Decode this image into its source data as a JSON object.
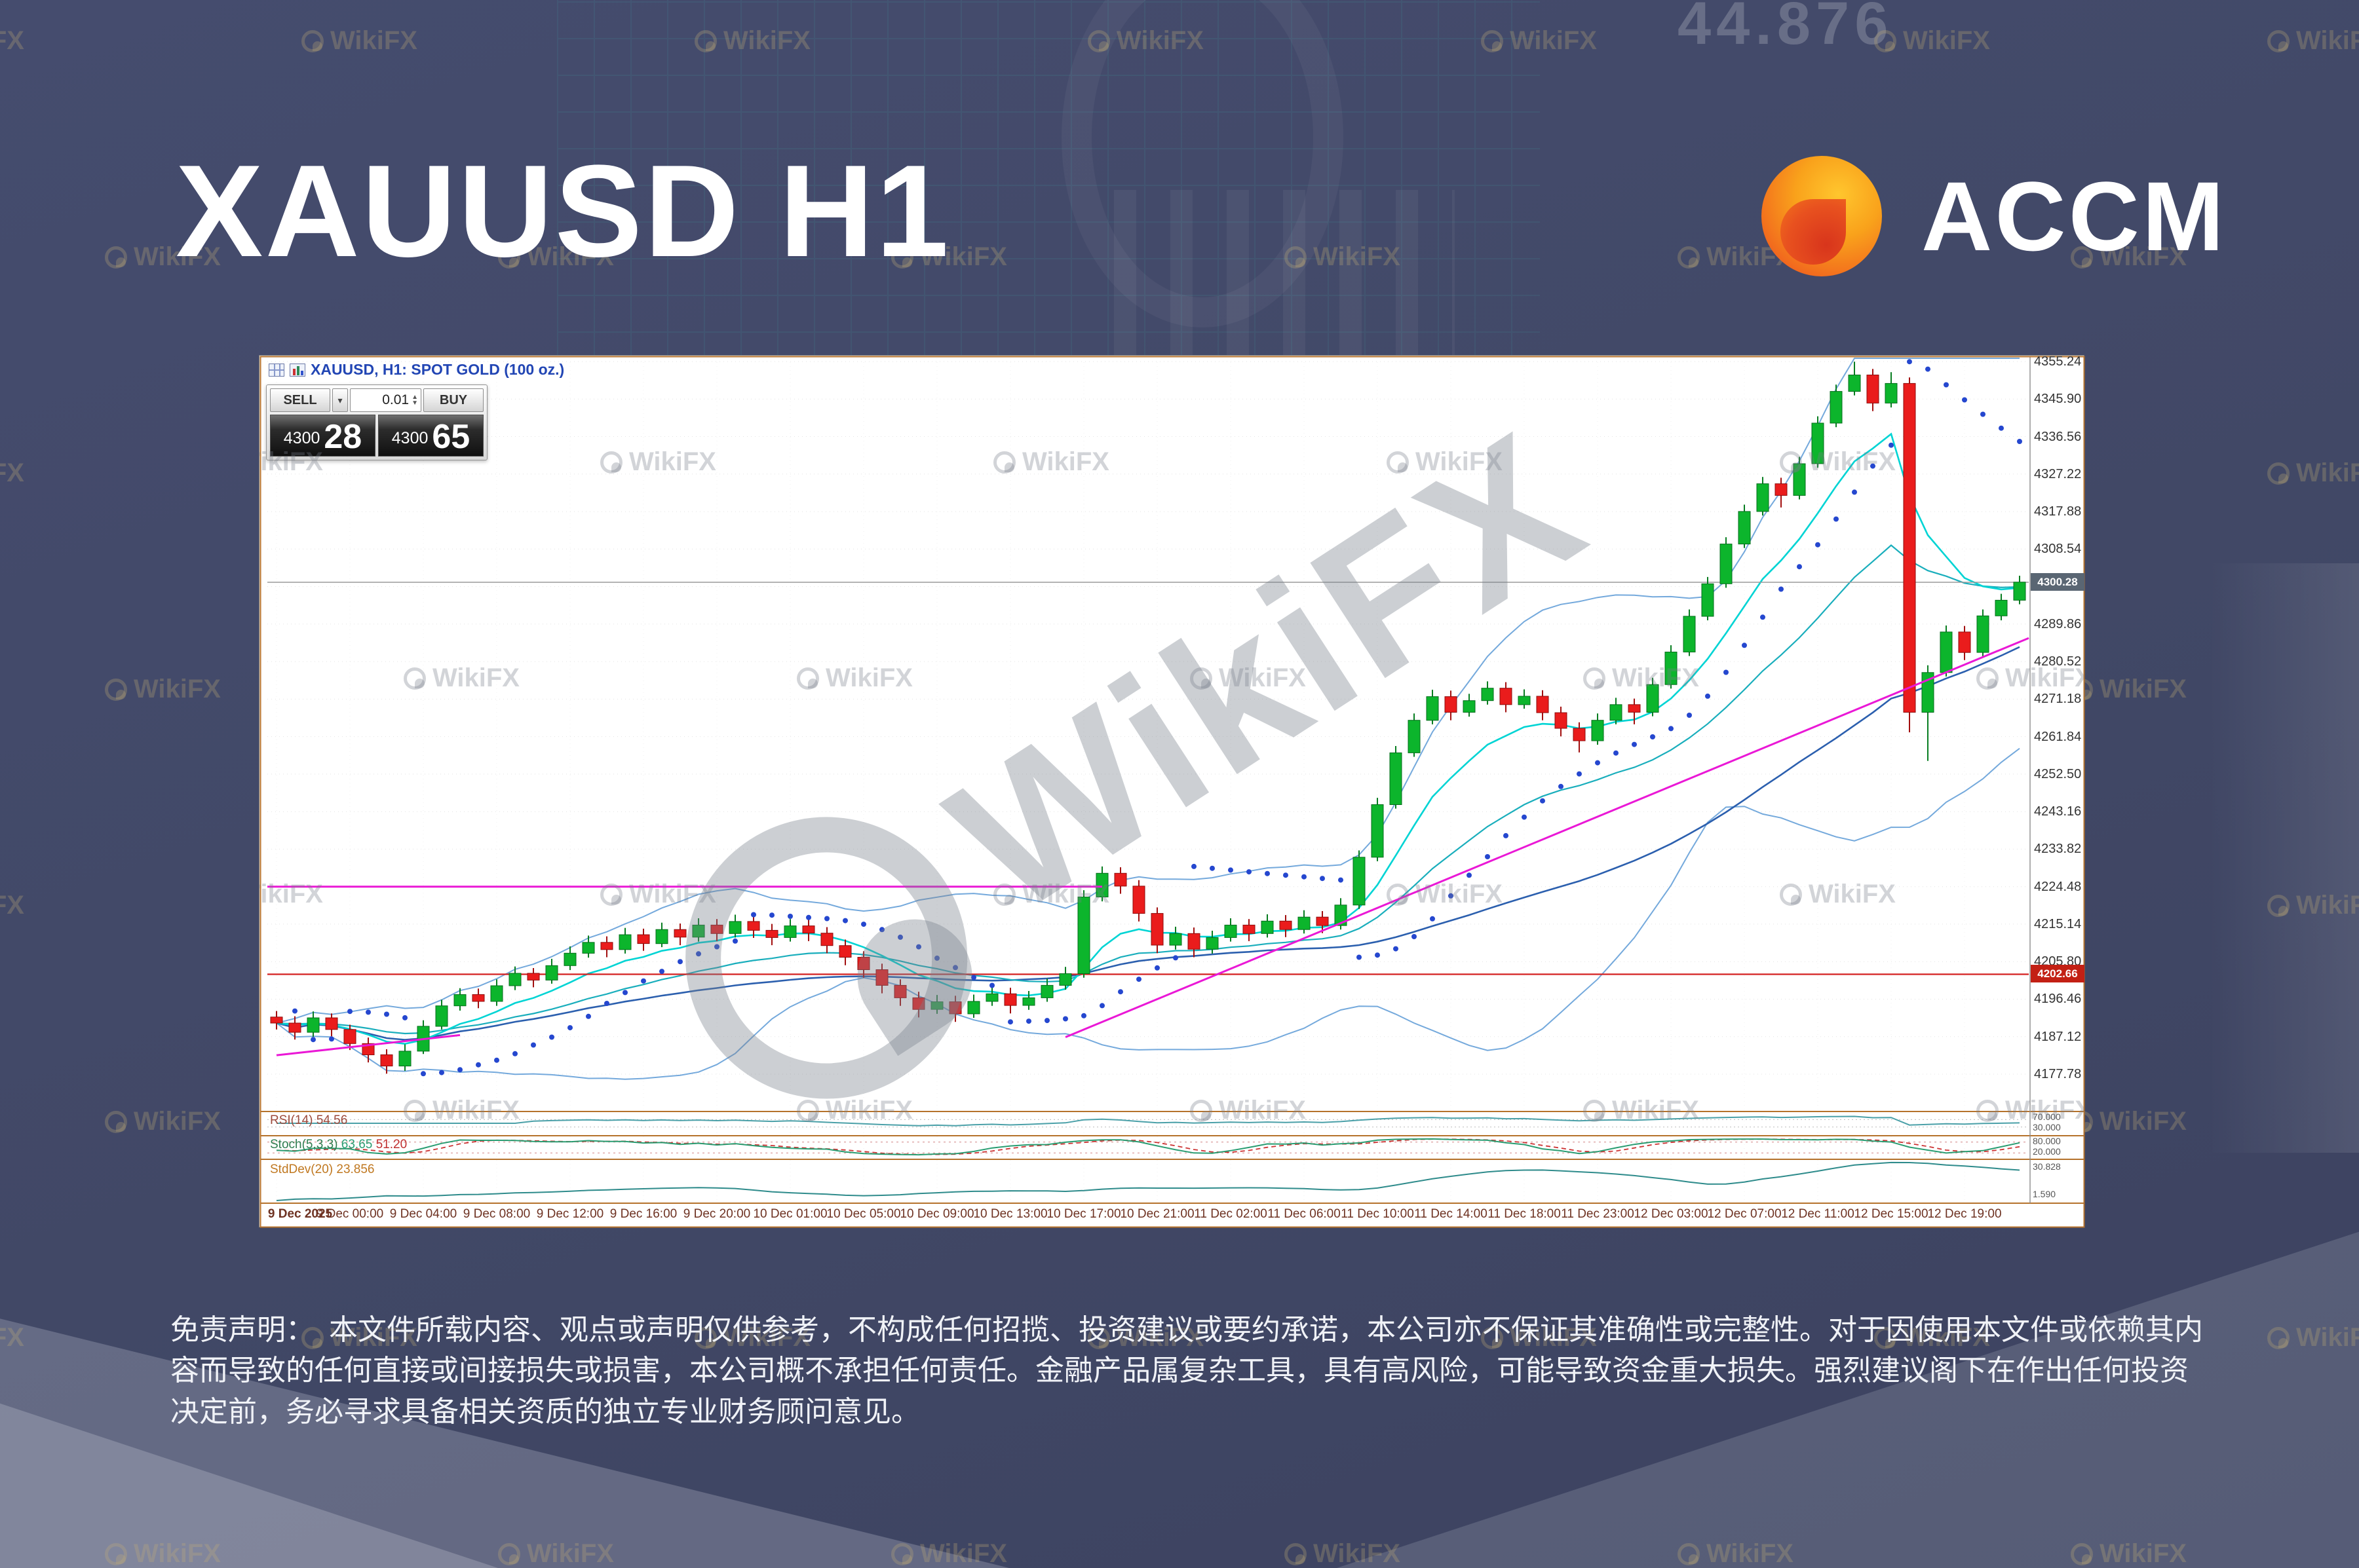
{
  "page": {
    "title": "XAUUSD H1",
    "brand": "ACCM",
    "watermark": "WikiFX",
    "bg_number": "44.876",
    "disclaimer": "免责声明：　本文件所载内容、观点或声明仅供参考，不构成任何招揽、投资建议或要约承诺，本公司亦不保证其准确性或完整性。对于因使用本文件或依赖其内容而导致的任何直接或间接损失或损害，本公司概不承担任何责任。金融产品属复杂工具，具有高风险，可能导致资金重大损失。强烈建议阁下在作出任何投资决定前，务必寻求具备相关资质的独立专业财务顾问意见。"
  },
  "terminal": {
    "symbol_header": "XAUUSD, H1: SPOT GOLD (100 oz.)",
    "one_click": {
      "sell_label": "SELL",
      "buy_label": "BUY",
      "volume": "0.01",
      "sell_price_small": "4300",
      "sell_price_big": "28",
      "buy_price_small": "4300",
      "buy_price_big": "65"
    },
    "current_price_tag": "4300.28",
    "red_line_tag": "4202.66",
    "price_axis": [
      "4355.24",
      "4345.90",
      "4336.56",
      "4327.22",
      "4317.88",
      "4308.54",
      "4299.20",
      "4289.86",
      "4280.52",
      "4271.18",
      "4261.84",
      "4252.50",
      "4243.16",
      "4233.82",
      "4224.48",
      "4215.14",
      "4205.80",
      "4196.46",
      "4187.12",
      "4177.78"
    ],
    "time_axis": [
      "9 Dec 2025",
      "9 Dec 00:00",
      "9 Dec 04:00",
      "9 Dec 08:00",
      "9 Dec 12:00",
      "9 Dec 16:00",
      "9 Dec 20:00",
      "10 Dec 01:00",
      "10 Dec 05:00",
      "10 Dec 09:00",
      "10 Dec 13:00",
      "10 Dec 17:00",
      "10 Dec 21:00",
      "11 Dec 02:00",
      "11 Dec 06:00",
      "11 Dec 10:00",
      "11 Dec 14:00",
      "11 Dec 18:00",
      "11 Dec 23:00",
      "12 Dec 03:00",
      "12 Dec 07:00",
      "12 Dec 11:00",
      "12 Dec 15:00",
      "12 Dec 19:00"
    ],
    "panes": {
      "rsi": {
        "name": "RSI(14)",
        "value": "54.56",
        "axis_top": "70.000",
        "axis_bottom": "30.000"
      },
      "stoch": {
        "name": "Stoch(5,3,3)",
        "k": "63.65",
        "d": "51.20",
        "axis_top": "80.000",
        "axis_bottom": "20.000"
      },
      "stddev": {
        "name": "StdDev(20)",
        "value": "23.856",
        "axis_top": "30.828",
        "axis_bottom": "1.590"
      }
    }
  },
  "chart_data": {
    "type": "candlestick",
    "symbol": "XAUUSD",
    "timeframe": "H1",
    "title": "XAUUSD, H1: SPOT GOLD (100 oz.)",
    "ylim": [
      4177.78,
      4355.24
    ],
    "x_labels": [
      "9 Dec 2025",
      "9 Dec 00:00",
      "9 Dec 04:00",
      "9 Dec 08:00",
      "9 Dec 12:00",
      "9 Dec 16:00",
      "9 Dec 20:00",
      "10 Dec 01:00",
      "10 Dec 05:00",
      "10 Dec 09:00",
      "10 Dec 13:00",
      "10 Dec 17:00",
      "10 Dec 21:00",
      "11 Dec 02:00",
      "11 Dec 06:00",
      "11 Dec 10:00",
      "11 Dec 14:00",
      "11 Dec 18:00",
      "11 Dec 23:00",
      "12 Dec 03:00",
      "12 Dec 07:00",
      "12 Dec 11:00",
      "12 Dec 15:00",
      "12 Dec 19:00"
    ],
    "x_label_every": 4,
    "bid": 4300.28,
    "ask": 4300.65,
    "candles": [
      [
        4192.0,
        4193.5,
        4188.9,
        4190.5
      ],
      [
        4190.5,
        4192.2,
        4186.4,
        4188.2
      ],
      [
        4188.2,
        4193.4,
        4187.1,
        4191.8
      ],
      [
        4191.8,
        4192.9,
        4187.2,
        4188.9
      ],
      [
        4188.9,
        4190.1,
        4183.8,
        4185.4
      ],
      [
        4185.4,
        4186.9,
        4180.7,
        4182.6
      ],
      [
        4182.6,
        4184.0,
        4177.9,
        4179.8
      ],
      [
        4179.8,
        4185.2,
        4178.6,
        4183.5
      ],
      [
        4183.5,
        4191.2,
        4182.8,
        4189.7
      ],
      [
        4189.7,
        4196.3,
        4188.9,
        4194.8
      ],
      [
        4194.8,
        4199.2,
        4193.6,
        4197.6
      ],
      [
        4197.6,
        4199.1,
        4194.2,
        4195.9
      ],
      [
        4195.9,
        4201.4,
        4194.8,
        4199.8
      ],
      [
        4199.8,
        4204.6,
        4198.7,
        4202.9
      ],
      [
        4202.9,
        4204.2,
        4199.4,
        4201.2
      ],
      [
        4201.2,
        4206.5,
        4200.3,
        4204.8
      ],
      [
        4204.8,
        4209.6,
        4203.7,
        4207.9
      ],
      [
        4207.9,
        4212.3,
        4206.8,
        4210.6
      ],
      [
        4210.6,
        4212.1,
        4206.9,
        4208.8
      ],
      [
        4208.8,
        4214.2,
        4207.8,
        4212.5
      ],
      [
        4212.5,
        4214.0,
        4208.5,
        4210.3
      ],
      [
        4210.3,
        4215.5,
        4209.4,
        4213.8
      ],
      [
        4213.8,
        4215.3,
        4209.9,
        4211.9
      ],
      [
        4211.9,
        4216.6,
        4210.8,
        4214.9
      ],
      [
        4214.9,
        4216.4,
        4210.9,
        4212.8
      ],
      [
        4212.8,
        4217.5,
        4211.8,
        4215.8
      ],
      [
        4215.8,
        4217.3,
        4211.7,
        4213.6
      ],
      [
        4213.6,
        4215.2,
        4209.9,
        4211.8
      ],
      [
        4211.8,
        4216.4,
        4210.8,
        4214.7
      ],
      [
        4214.7,
        4216.2,
        4210.9,
        4212.9
      ],
      [
        4212.9,
        4214.4,
        4207.9,
        4209.8
      ],
      [
        4209.8,
        4211.3,
        4204.9,
        4206.9
      ],
      [
        4206.9,
        4208.4,
        4201.8,
        4203.8
      ],
      [
        4203.8,
        4205.3,
        4197.9,
        4199.9
      ],
      [
        4199.9,
        4201.4,
        4194.8,
        4196.8
      ],
      [
        4196.8,
        4198.3,
        4191.9,
        4193.9
      ],
      [
        4193.9,
        4197.5,
        4192.8,
        4195.8
      ],
      [
        4195.8,
        4197.3,
        4190.8,
        4192.8
      ],
      [
        4192.8,
        4197.6,
        4191.8,
        4195.9
      ],
      [
        4195.9,
        4199.5,
        4194.8,
        4197.8
      ],
      [
        4197.8,
        4199.3,
        4192.9,
        4194.9
      ],
      [
        4194.9,
        4198.5,
        4193.8,
        4196.8
      ],
      [
        4196.8,
        4201.6,
        4195.8,
        4199.9
      ],
      [
        4199.9,
        4204.5,
        4198.8,
        4202.8
      ],
      [
        4202.8,
        4223.6,
        4201.8,
        4221.9
      ],
      [
        4221.9,
        4229.5,
        4220.8,
        4227.8
      ],
      [
        4227.8,
        4229.3,
        4222.7,
        4224.6
      ],
      [
        4224.6,
        4226.1,
        4215.8,
        4217.8
      ],
      [
        4217.8,
        4219.3,
        4207.9,
        4209.9
      ],
      [
        4209.9,
        4214.5,
        4208.8,
        4212.8
      ],
      [
        4212.8,
        4214.3,
        4206.9,
        4208.9
      ],
      [
        4208.9,
        4213.5,
        4207.8,
        4211.8
      ],
      [
        4211.8,
        4216.6,
        4210.8,
        4214.9
      ],
      [
        4214.9,
        4216.4,
        4210.9,
        4212.8
      ],
      [
        4212.8,
        4217.6,
        4211.8,
        4215.9
      ],
      [
        4215.9,
        4217.4,
        4211.9,
        4213.8
      ],
      [
        4213.8,
        4218.6,
        4212.8,
        4216.9
      ],
      [
        4216.9,
        4218.4,
        4212.9,
        4214.8
      ],
      [
        4214.8,
        4221.6,
        4213.8,
        4219.9
      ],
      [
        4219.9,
        4233.5,
        4218.9,
        4231.8
      ],
      [
        4231.8,
        4246.6,
        4230.8,
        4244.9
      ],
      [
        4244.9,
        4259.5,
        4243.9,
        4257.8
      ],
      [
        4257.8,
        4267.6,
        4256.8,
        4265.9
      ],
      [
        4265.9,
        4273.5,
        4264.9,
        4271.8
      ],
      [
        4271.8,
        4273.3,
        4265.9,
        4267.9
      ],
      [
        4267.9,
        4272.5,
        4266.8,
        4270.8
      ],
      [
        4270.8,
        4275.6,
        4269.8,
        4273.9
      ],
      [
        4273.9,
        4275.4,
        4267.9,
        4269.8
      ],
      [
        4269.8,
        4273.6,
        4268.8,
        4271.9
      ],
      [
        4271.9,
        4273.4,
        4265.9,
        4267.8
      ],
      [
        4267.8,
        4269.3,
        4261.9,
        4263.9
      ],
      [
        4263.9,
        4265.4,
        4257.9,
        4260.8
      ],
      [
        4260.8,
        4267.6,
        4259.8,
        4265.9
      ],
      [
        4265.9,
        4271.5,
        4264.9,
        4269.8
      ],
      [
        4269.8,
        4271.3,
        4264.9,
        4267.9
      ],
      [
        4267.9,
        4276.5,
        4266.9,
        4274.8
      ],
      [
        4274.8,
        4284.6,
        4273.8,
        4282.9
      ],
      [
        4282.9,
        4293.5,
        4281.9,
        4291.8
      ],
      [
        4291.8,
        4301.6,
        4290.8,
        4299.9
      ],
      [
        4299.9,
        4311.5,
        4298.9,
        4309.8
      ],
      [
        4309.8,
        4319.6,
        4308.8,
        4317.9
      ],
      [
        4317.9,
        4326.5,
        4316.9,
        4324.8
      ],
      [
        4324.8,
        4326.3,
        4318.9,
        4321.9
      ],
      [
        4321.9,
        4331.5,
        4320.9,
        4329.8
      ],
      [
        4329.8,
        4341.6,
        4328.8,
        4339.9
      ],
      [
        4339.9,
        4349.5,
        4338.9,
        4347.8
      ],
      [
        4347.8,
        4355.2,
        4346.8,
        4351.9
      ],
      [
        4351.9,
        4353.4,
        4342.9,
        4344.9
      ],
      [
        4344.9,
        4352.6,
        4343.8,
        4349.8
      ],
      [
        4349.8,
        4351.3,
        4262.9,
        4267.9
      ],
      [
        4267.9,
        4279.6,
        4255.8,
        4277.8
      ],
      [
        4277.8,
        4289.5,
        4276.8,
        4287.9
      ],
      [
        4287.9,
        4289.4,
        4280.9,
        4282.8
      ],
      [
        4282.8,
        4293.5,
        4281.8,
        4291.9
      ],
      [
        4291.9,
        4297.4,
        4290.8,
        4295.8
      ],
      [
        4295.8,
        4301.9,
        4294.8,
        4300.3
      ]
    ],
    "overlays": {
      "bid_line_price": 4300.28,
      "red_hline_price": 4202.66,
      "magenta_hline": {
        "price": 4224.48,
        "from_index": 0,
        "to_index": 45
      },
      "trendline": {
        "from_index": 43,
        "from_price": 4187.0,
        "to_index": 99,
        "to_price": 4293.0
      },
      "trendline2": {
        "from_index": 0,
        "from_price": 4182.5,
        "to_index": 10,
        "to_price": 4187.5
      }
    },
    "indicator_values": {
      "rsi14": 54.56,
      "stoch_k": 63.65,
      "stoch_d": 51.2,
      "stddev20": 23.856
    }
  }
}
